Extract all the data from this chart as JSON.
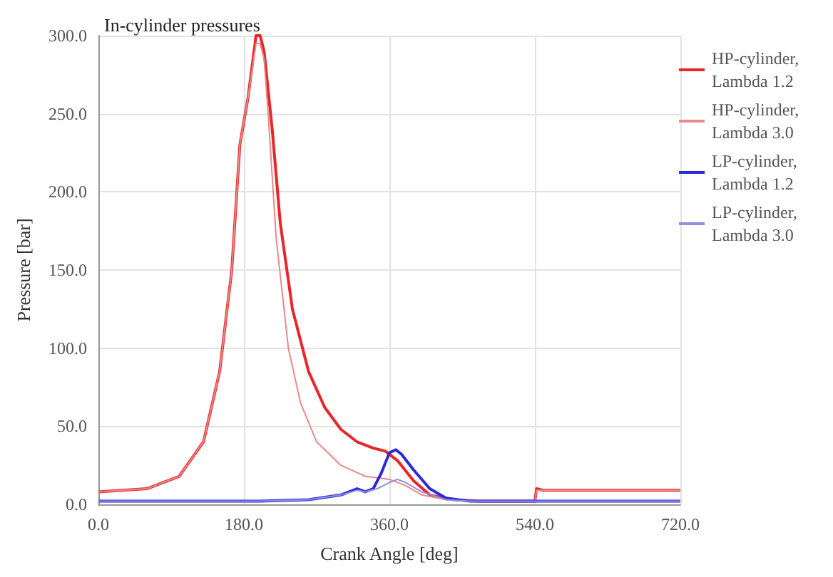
{
  "chart_data": {
    "type": "line",
    "title": "In-cylinder pressures",
    "xlabel": "Crank Angle [deg]",
    "ylabel": "Pressure [bar]",
    "xlim": [
      0,
      720
    ],
    "xticks": [
      {
        "value": 0,
        "label": "0.0"
      },
      {
        "value": 180,
        "label": "180.0"
      },
      {
        "value": 360,
        "label": "360.0"
      },
      {
        "value": 540,
        "label": "540.0"
      },
      {
        "value": 720,
        "label": "720.0"
      }
    ],
    "ylim": [
      0,
      300
    ],
    "yticks": [
      {
        "value": 0,
        "label": "0.0"
      },
      {
        "value": 50,
        "label": "50.0"
      },
      {
        "value": 100,
        "label": "100.0"
      },
      {
        "value": 150,
        "label": "150.0"
      },
      {
        "value": 200,
        "label": "200.0"
      },
      {
        "value": 250,
        "label": "250.0"
      },
      {
        "value": 300,
        "label": "300.0"
      }
    ],
    "grid": true,
    "legend": "right",
    "marker": "none",
    "line_style": "solid",
    "series": [
      {
        "name": "HP-cylinder, Lambda 1.2",
        "color": "#e8262a",
        "x": [
          0,
          60,
          100,
          130,
          150,
          165,
          175,
          180,
          185,
          195,
          200,
          205,
          215,
          225,
          240,
          260,
          280,
          300,
          320,
          340,
          355,
          370,
          390,
          410,
          440,
          470,
          540,
          542,
          550,
          720
        ],
        "values": [
          8,
          10,
          18,
          40,
          85,
          150,
          230,
          245,
          260,
          300,
          300,
          290,
          240,
          180,
          125,
          85,
          62,
          48,
          40,
          36,
          34,
          28,
          15,
          6,
          3,
          2,
          2,
          10,
          9,
          9
        ]
      },
      {
        "name": "HP-cylinder, Lambda 3.0",
        "color": "#e88a8a",
        "x": [
          0,
          60,
          100,
          130,
          150,
          165,
          175,
          180,
          185,
          195,
          200,
          205,
          210,
          220,
          235,
          250,
          270,
          300,
          330,
          360,
          380,
          400,
          430,
          470,
          540,
          542,
          720
        ],
        "values": [
          8,
          10,
          18,
          40,
          85,
          150,
          230,
          245,
          260,
          295,
          295,
          285,
          250,
          170,
          100,
          65,
          40,
          25,
          18,
          16,
          12,
          6,
          3,
          2,
          2,
          9,
          9
        ]
      },
      {
        "name": "LP-cylinder, Lambda 1.2",
        "color": "#2a2ad8",
        "x": [
          0,
          200,
          260,
          300,
          320,
          330,
          340,
          350,
          360,
          368,
          375,
          390,
          410,
          430,
          460,
          720
        ],
        "values": [
          2,
          2,
          3,
          6,
          10,
          8,
          10,
          20,
          33,
          35,
          32,
          22,
          10,
          4,
          2,
          2
        ]
      },
      {
        "name": "LP-cylinder, Lambda 3.0",
        "color": "#9090e0",
        "x": [
          0,
          200,
          260,
          300,
          320,
          330,
          345,
          360,
          370,
          380,
          400,
          430,
          460,
          720
        ],
        "values": [
          2,
          2,
          3,
          6,
          9,
          8,
          10,
          14,
          16,
          14,
          8,
          3,
          2,
          2
        ]
      }
    ]
  }
}
